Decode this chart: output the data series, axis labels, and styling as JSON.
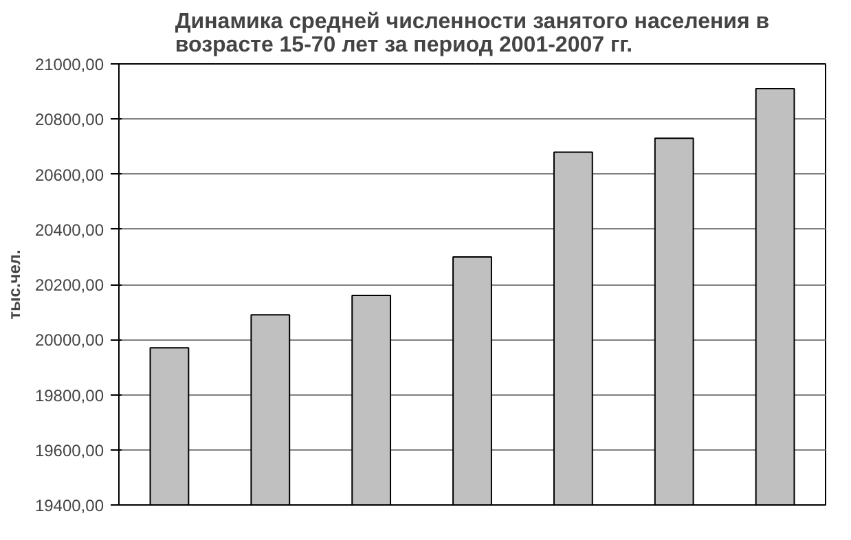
{
  "chart_data": {
    "type": "bar",
    "title": "Динамика средней численности занятого населения в возрасте 15-70 лет за период 2001-2007 гг.",
    "ylabel": "тыс.чел.",
    "categories": [
      null,
      null,
      null,
      null,
      null,
      null,
      null
    ],
    "values": [
      19970,
      20090,
      20160,
      20300,
      20680,
      20730,
      20910
    ],
    "color": "#c0c0c0",
    "ylim": [
      19400,
      21000
    ],
    "yticks": [
      {
        "value": 19400,
        "label": "19400,00"
      },
      {
        "value": 19600,
        "label": "19600,00"
      },
      {
        "value": 19800,
        "label": "19800,00"
      },
      {
        "value": 20000,
        "label": "20000,00"
      },
      {
        "value": 20200,
        "label": "20200,00"
      },
      {
        "value": 20400,
        "label": "20400,00"
      },
      {
        "value": 20600,
        "label": "20600,00"
      },
      {
        "value": 20800,
        "label": "20800,00"
      },
      {
        "value": 21000,
        "label": "21000,00"
      }
    ],
    "grid": "y",
    "tick_labels": "y"
  }
}
